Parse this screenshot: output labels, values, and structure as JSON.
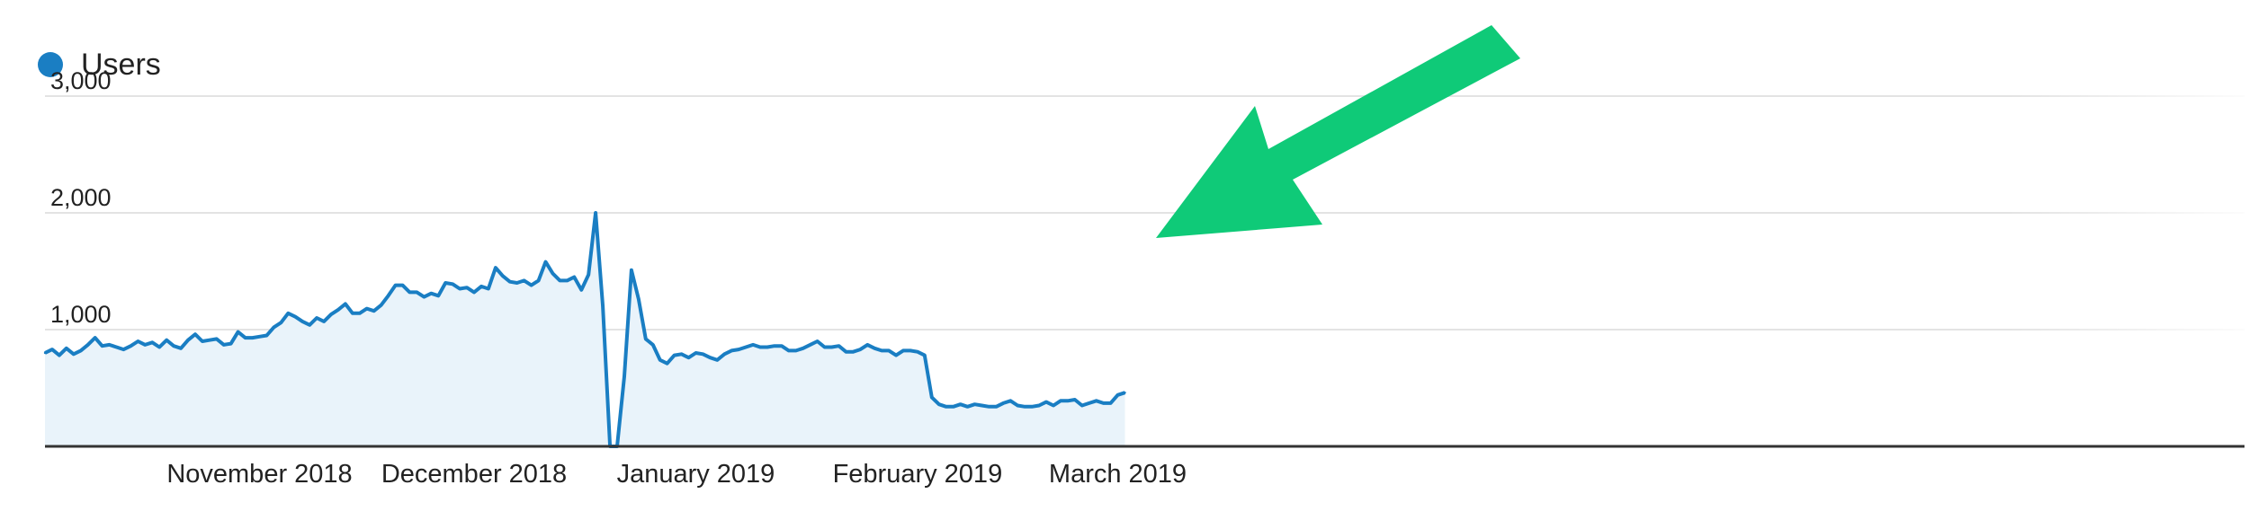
{
  "chart_data": {
    "type": "area",
    "legend": [
      {
        "name": "Users",
        "color": "#1a7ec3"
      }
    ],
    "series": [
      {
        "name": "Users",
        "color": "#1a7ec3",
        "x_start": "2018-10-02",
        "values": [
          800,
          830,
          780,
          840,
          790,
          820,
          870,
          930,
          860,
          870,
          850,
          830,
          860,
          900,
          870,
          890,
          850,
          910,
          860,
          840,
          910,
          960,
          900,
          910,
          920,
          870,
          880,
          980,
          930,
          930,
          940,
          950,
          1020,
          1060,
          1140,
          1110,
          1070,
          1040,
          1100,
          1070,
          1130,
          1170,
          1220,
          1140,
          1140,
          1180,
          1160,
          1210,
          1290,
          1380,
          1380,
          1320,
          1320,
          1280,
          1310,
          1290,
          1400,
          1390,
          1350,
          1360,
          1320,
          1370,
          1350,
          1530,
          1460,
          1410,
          1400,
          1420,
          1380,
          1420,
          1580,
          1480,
          1420,
          1420,
          1450,
          1340,
          1470,
          2000,
          1200,
          0,
          0,
          600,
          1510,
          1260,
          920,
          870,
          740,
          710,
          780,
          790,
          760,
          800,
          790,
          760,
          740,
          790,
          820,
          830,
          850,
          870,
          850,
          850,
          860,
          860,
          820,
          820,
          840,
          870,
          900,
          850,
          850,
          860,
          810,
          810,
          830,
          870,
          840,
          820,
          820,
          780,
          820,
          820,
          810,
          780,
          420,
          360,
          340,
          340,
          360,
          340,
          360,
          350,
          340,
          340,
          370,
          390,
          350,
          340,
          340,
          350,
          380,
          350,
          390,
          390,
          400,
          350,
          370,
          390,
          370,
          370,
          440,
          460
        ]
      }
    ],
    "y_ticks": [
      {
        "label": "3,000",
        "value": 3000
      },
      {
        "label": "2,000",
        "value": 2000
      },
      {
        "label": "1,000",
        "value": 1000
      }
    ],
    "x_ticks": [
      {
        "label": "November 2018",
        "date": "2018-11-01"
      },
      {
        "label": "December 2018",
        "date": "2018-12-01"
      },
      {
        "label": "January 2019",
        "date": "2019-01-01"
      },
      {
        "label": "February 2019",
        "date": "2019-02-01"
      },
      {
        "label": "March 2019",
        "date": "2019-03-01"
      }
    ],
    "ylim": [
      0,
      3000
    ],
    "grid": true,
    "legend_position": "top-left",
    "annotation": {
      "type": "arrow",
      "color": "#0fca78",
      "points_to": "2018-12-23"
    }
  }
}
